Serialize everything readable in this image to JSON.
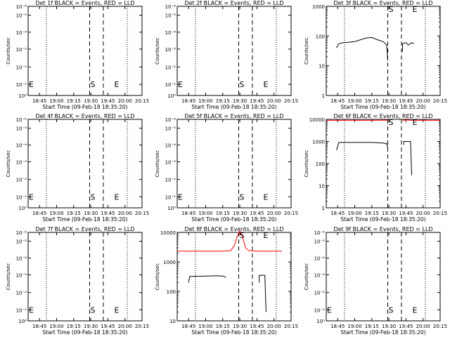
{
  "xlabel": "Start Time (09-Feb-18 18:35:20)",
  "ylabel": "Counts/sec",
  "x_tick_labels": [
    "18:45",
    "19:00",
    "19:15",
    "19:30",
    "19:45",
    "20:00",
    "20:15"
  ],
  "markers": {
    "start": "S",
    "end": "E"
  },
  "colors": {
    "events": "#000000",
    "lld": "#ff0000"
  },
  "chart_data": [
    {
      "type": "line",
      "title": "Det 1f BLACK = Events, RED = LLD",
      "xlabel": "Start Time (09-Feb-18 18:35:20)",
      "ylabel": "Counts/sec",
      "yscale": "log",
      "ylim": [
        0.9,
        1.1
      ],
      "y_tick_labels": [
        "10⁰",
        "10⁻¹",
        "10⁻²",
        "10⁻³",
        "10⁻⁴",
        "10⁻⁵",
        "10⁻⁶"
      ],
      "xlim": [
        "18:35",
        "20:15"
      ],
      "dotted_lines": [
        "18:51",
        "20:02"
      ],
      "dashed_lines": [
        "19:29",
        "19:41"
      ],
      "marker_positions": {
        "start": "19:29",
        "end": "19:50"
      },
      "series": []
    },
    {
      "type": "line",
      "title": "Det 2f BLACK = Events, RED = LLD",
      "xlabel": "Start Time (09-Feb-18 18:35:20)",
      "ylabel": "Counts/sec",
      "yscale": "log",
      "ylim": [
        0.9,
        1.1
      ],
      "y_tick_labels": [
        "10⁰",
        "10⁻¹",
        "10⁻²",
        "10⁻³",
        "10⁻⁴",
        "10⁻⁵",
        "10⁻⁶"
      ],
      "xlim": [
        "18:35",
        "20:15"
      ],
      "dotted_lines": [
        "18:51",
        "20:02"
      ],
      "dashed_lines": [
        "19:29",
        "19:41"
      ],
      "marker_positions": {
        "start": "19:29",
        "end": "19:50"
      },
      "series": []
    },
    {
      "type": "line",
      "title": "Det 3f BLACK = Events, RED = LLD",
      "xlabel": "Start Time (09-Feb-18 18:35:20)",
      "ylabel": "Counts/sec",
      "yscale": "log",
      "ylim": [
        1,
        1000
      ],
      "y_tick_labels": [
        "1",
        "10",
        "100",
        "1000"
      ],
      "xlim": [
        "18:35",
        "20:15"
      ],
      "dotted_lines": [
        "18:51",
        "20:02"
      ],
      "dashed_lines": [
        "19:29",
        "19:41"
      ],
      "marker_positions": {
        "start": "19:29",
        "end": "19:50"
      },
      "series": [
        {
          "color": "#000000",
          "segments": [
            [
              [
                "18:44",
                40
              ],
              [
                "18:46",
                55
              ],
              [
                "18:50",
                60
              ],
              [
                "18:55",
                62
              ],
              [
                "19:00",
                65
              ],
              [
                "19:05",
                75
              ],
              [
                "19:10",
                85
              ],
              [
                "19:15",
                90
              ],
              [
                "19:20",
                75
              ],
              [
                "19:25",
                65
              ],
              [
                "19:28",
                50
              ],
              [
                "19:29",
                15
              ]
            ],
            [
              [
                "19:42",
                30
              ],
              [
                "19:42",
                55
              ],
              [
                "19:45",
                60
              ],
              [
                "19:47",
                50
              ],
              [
                "19:50",
                60
              ],
              [
                "19:52",
                55
              ]
            ]
          ]
        }
      ]
    },
    {
      "type": "line",
      "title": "Det 4f BLACK = Events, RED = LLD",
      "xlabel": "Start Time (09-Feb-18 18:35:20)",
      "ylabel": "Counts/sec",
      "yscale": "log",
      "ylim": [
        0.9,
        1.1
      ],
      "y_tick_labels": [
        "10⁰",
        "10⁻¹",
        "10⁻²",
        "10⁻³",
        "10⁻⁴",
        "10⁻⁵",
        "10⁻⁶"
      ],
      "xlim": [
        "18:35",
        "20:15"
      ],
      "dotted_lines": [
        "18:51",
        "20:02"
      ],
      "dashed_lines": [
        "19:29",
        "19:41"
      ],
      "marker_positions": {
        "start": "19:29",
        "end": "19:50"
      },
      "series": []
    },
    {
      "type": "line",
      "title": "Det 5f BLACK = Events, RED = LLD",
      "xlabel": "Start Time (09-Feb-18 18:35:20)",
      "ylabel": "Counts/sec",
      "yscale": "log",
      "ylim": [
        0.9,
        1.1
      ],
      "y_tick_labels": [
        "10⁰",
        "10⁻¹",
        "10⁻²",
        "10⁻³",
        "10⁻⁴",
        "10⁻⁵",
        "10⁻⁶"
      ],
      "xlim": [
        "18:35",
        "20:15"
      ],
      "dotted_lines": [
        "18:51",
        "20:02"
      ],
      "dashed_lines": [
        "19:29",
        "19:41"
      ],
      "marker_positions": {
        "start": "19:29",
        "end": "19:50"
      },
      "series": []
    },
    {
      "type": "line",
      "title": "Det 6f BLACK = Events, RED = LLD",
      "xlabel": "Start Time (09-Feb-18 18:35:20)",
      "ylabel": "Counts/sec",
      "yscale": "log",
      "ylim": [
        1,
        10000
      ],
      "y_tick_labels": [
        "1",
        "10",
        "100",
        "1000",
        "10000"
      ],
      "xlim": [
        "18:35",
        "20:15"
      ],
      "dotted_lines": [
        "18:51",
        "20:02"
      ],
      "dashed_lines": [
        "19:29",
        "19:41"
      ],
      "marker_positions": {
        "start": "19:29",
        "end": "19:50"
      },
      "series": [
        {
          "color": "#ff0000",
          "segments": [
            [
              [
                "18:35",
                9000
              ],
              [
                "18:45",
                9000
              ],
              [
                "19:00",
                9000
              ],
              [
                "19:15",
                9000
              ],
              [
                "19:28",
                9200
              ],
              [
                "19:29",
                9000
              ]
            ],
            [
              [
                "19:42",
                9000
              ],
              [
                "19:45",
                9500
              ],
              [
                "19:50",
                9000
              ],
              [
                "20:05",
                9000
              ],
              [
                "20:15",
                9000
              ]
            ]
          ]
        },
        {
          "color": "#000000",
          "segments": [
            [
              [
                "18:44",
                400
              ],
              [
                "18:46",
                900
              ],
              [
                "19:00",
                900
              ],
              [
                "19:15",
                900
              ],
              [
                "19:25",
                850
              ],
              [
                "19:28",
                800
              ],
              [
                "19:29",
                500
              ]
            ],
            [
              [
                "19:43",
                700
              ],
              [
                "19:43",
                1000
              ],
              [
                "19:49",
                1000
              ],
              [
                "19:50",
                30
              ]
            ]
          ]
        }
      ]
    },
    {
      "type": "line",
      "title": "Det 7f BLACK = Events, RED = LLD",
      "xlabel": "Start Time (09-Feb-18 18:35:20)",
      "ylabel": "Counts/sec",
      "yscale": "log",
      "ylim": [
        0.9,
        1.1
      ],
      "y_tick_labels": [
        "10⁰",
        "10⁻¹",
        "10⁻²",
        "10⁻³",
        "10⁻⁴",
        "10⁻⁵",
        "10⁻⁶"
      ],
      "xlim": [
        "18:35",
        "20:15"
      ],
      "dotted_lines": [
        "18:51",
        "20:02"
      ],
      "dashed_lines": [
        "19:29",
        "19:41"
      ],
      "marker_positions": {
        "start": "19:29",
        "end": "19:50"
      },
      "series": []
    },
    {
      "type": "line",
      "title": "Det 8f BLACK = Events, RED = LLD",
      "xlabel": "Start Time (09-Feb-18 18:35:20)",
      "ylabel": "Counts/sec",
      "yscale": "log",
      "ylim": [
        10,
        10000
      ],
      "y_tick_labels": [
        "10",
        "100",
        "1000",
        "10000"
      ],
      "xlim": [
        "18:35",
        "20:15"
      ],
      "dotted_lines": [
        "18:51",
        "20:02"
      ],
      "dashed_lines": [
        "19:29",
        "19:41"
      ],
      "marker_positions": {
        "start": "19:29",
        "end": "19:50"
      },
      "series": [
        {
          "color": "#ff0000",
          "segments": [
            [
              [
                "18:35",
                2300
              ],
              [
                "18:45",
                2300
              ],
              [
                "19:00",
                2300
              ],
              [
                "19:15",
                2300
              ],
              [
                "19:22",
                2400
              ],
              [
                "19:25",
                3500
              ],
              [
                "19:28",
                8000
              ],
              [
                "19:30",
                11000
              ],
              [
                "19:32",
                8000
              ],
              [
                "19:35",
                3000
              ],
              [
                "19:38",
                2400
              ],
              [
                "19:45",
                2300
              ],
              [
                "20:00",
                2300
              ],
              [
                "20:07",
                2300
              ]
            ]
          ]
        },
        {
          "color": "#000000",
          "segments": [
            [
              [
                "18:45",
                200
              ],
              [
                "18:46",
                320
              ],
              [
                "19:00",
                330
              ],
              [
                "19:10",
                340
              ],
              [
                "19:15",
                330
              ],
              [
                "19:18",
                300
              ]
            ],
            [
              [
                "19:47",
                200
              ],
              [
                "19:47",
                350
              ],
              [
                "19:52",
                350
              ],
              [
                "19:53",
                20
              ]
            ]
          ]
        }
      ]
    },
    {
      "type": "line",
      "title": "Det 9f BLACK = Events, RED = LLD",
      "xlabel": "Start Time (09-Feb-18 18:35:20)",
      "ylabel": "Counts/sec",
      "yscale": "log",
      "ylim": [
        0.9,
        1.1
      ],
      "y_tick_labels": [
        "10⁰",
        "10⁻¹",
        "10⁻²",
        "10⁻³",
        "10⁻⁴",
        "10⁻⁵",
        "10⁻⁶"
      ],
      "xlim": [
        "18:35",
        "20:15"
      ],
      "dotted_lines": [
        "18:51",
        "20:02"
      ],
      "dashed_lines": [
        "19:29",
        "19:41"
      ],
      "marker_positions": {
        "start": "19:29",
        "end": "19:50"
      },
      "series": []
    }
  ]
}
